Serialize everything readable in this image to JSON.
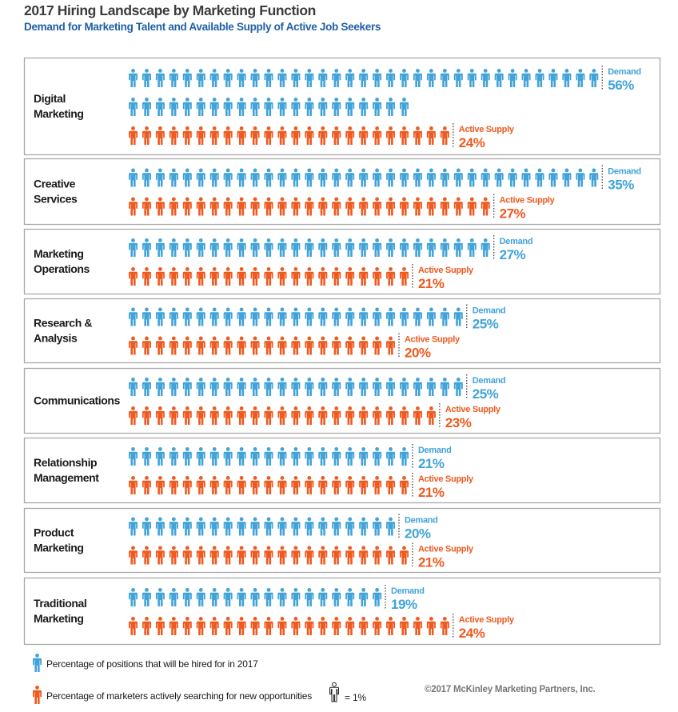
{
  "title": "2017 Hiring Landscape by Marketing Function",
  "subtitle": "Demand for Marketing Talent and Available Supply of Active Job Seekers",
  "colors": {
    "demand": "#41a3d8",
    "supply": "#ee5a1f",
    "border": "#a9a9a9"
  },
  "legend": {
    "demand": "Percentage of positions that will be hired for in 2017",
    "supply": "Percentage of marketers actively searching for new opportunities",
    "unit": "= 1%"
  },
  "copyright": "©2017 McKinley Marketing Partners, Inc.",
  "chart_data": {
    "type": "bar",
    "encoding": "pictograph",
    "categories": [
      "Digital\nMarketing",
      "Creative\nServices",
      "Marketing\nOperations",
      "Research &\nAnalysis",
      "Communications",
      "Relationship\nManagement",
      "Product\nMarketing",
      "Traditional\nMarketing"
    ],
    "series": [
      {
        "name": "Demand",
        "values": [
          56,
          35,
          27,
          25,
          25,
          21,
          20,
          19
        ],
        "labels": [
          "56%",
          "35%",
          "27%",
          "25%",
          "25%",
          "21%",
          "20%",
          "19%"
        ]
      },
      {
        "name": "Active Supply",
        "values": [
          24,
          27,
          21,
          20,
          23,
          21,
          21,
          24
        ],
        "labels": [
          "24%",
          "27%",
          "21%",
          "20%",
          "23%",
          "21%",
          "21%",
          "24%"
        ]
      }
    ]
  }
}
